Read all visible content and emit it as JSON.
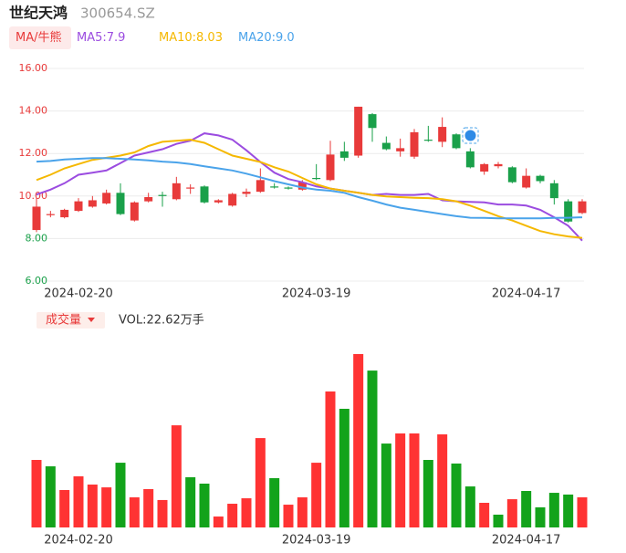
{
  "header": {
    "name": "世纪天鸿",
    "code": "300654.SZ"
  },
  "chart_data": [
    {
      "type": "candlestick",
      "legend_title": "MA/牛熊",
      "categories": [
        null,
        null,
        null,
        "2024-02-20",
        null,
        null,
        null,
        null,
        null,
        null,
        null,
        null,
        null,
        null,
        null,
        null,
        null,
        null,
        null,
        null,
        "2024-03-19",
        null,
        null,
        null,
        null,
        null,
        null,
        null,
        null,
        null,
        null,
        null,
        null,
        null,
        null,
        "2024-04-17",
        null,
        null,
        null,
        null
      ],
      "open": [
        8.4,
        9.1,
        9.0,
        9.3,
        9.5,
        9.65,
        10.15,
        8.85,
        9.75,
        10.05,
        9.85,
        10.35,
        10.45,
        9.7,
        9.55,
        10.1,
        10.2,
        10.45,
        10.4,
        10.3,
        10.85,
        10.75,
        12.1,
        11.9,
        13.85,
        12.5,
        12.1,
        11.85,
        12.65,
        12.55,
        12.9,
        12.1,
        11.15,
        11.4,
        11.35,
        10.4,
        10.95,
        10.6,
        9.75,
        9.2
      ],
      "high": [
        9.9,
        9.3,
        9.4,
        9.9,
        10.0,
        10.3,
        10.6,
        9.75,
        10.15,
        10.2,
        10.9,
        10.55,
        10.5,
        9.85,
        10.15,
        10.35,
        11.3,
        10.6,
        10.45,
        10.75,
        11.5,
        12.6,
        12.55,
        14.2,
        13.9,
        12.8,
        12.7,
        13.15,
        13.3,
        13.7,
        12.95,
        12.25,
        11.55,
        11.6,
        11.4,
        11.3,
        11.0,
        10.75,
        9.85,
        9.85
      ],
      "low": [
        8.3,
        9.0,
        8.95,
        9.25,
        9.45,
        9.6,
        9.1,
        8.8,
        9.7,
        9.5,
        9.8,
        10.1,
        9.65,
        9.65,
        9.5,
        9.95,
        10.15,
        10.35,
        10.3,
        10.25,
        10.75,
        10.7,
        11.65,
        11.8,
        12.55,
        12.15,
        11.85,
        11.75,
        12.55,
        12.3,
        12.2,
        11.3,
        11.0,
        11.3,
        10.6,
        10.35,
        10.6,
        9.6,
        8.75,
        9.15
      ],
      "close": [
        9.5,
        9.15,
        9.35,
        9.75,
        9.8,
        10.15,
        9.15,
        9.7,
        9.95,
        10.0,
        10.6,
        10.4,
        9.7,
        9.8,
        10.1,
        10.2,
        10.75,
        10.4,
        10.35,
        10.65,
        10.8,
        11.95,
        11.8,
        14.2,
        13.2,
        12.2,
        12.25,
        13.0,
        12.6,
        13.25,
        12.25,
        11.35,
        11.5,
        11.5,
        10.65,
        10.95,
        10.7,
        9.9,
        8.8,
        9.75
      ],
      "up_color": "#e83a3a",
      "down_color": "#1aa04a",
      "series": [
        {
          "name": "MA5:7.9",
          "color": "#9b4ce0",
          "values": [
            10.07,
            10.3,
            10.6,
            11.0,
            11.1,
            11.2,
            11.55,
            11.9,
            12.05,
            12.2,
            12.45,
            12.6,
            12.95,
            12.85,
            12.65,
            12.15,
            11.6,
            11.1,
            10.8,
            10.65,
            10.45,
            10.35,
            10.25,
            10.15,
            10.05,
            10.1,
            10.05,
            10.05,
            10.1,
            9.8,
            9.75,
            9.72,
            9.7,
            9.6,
            9.6,
            9.55,
            9.35,
            9.0,
            8.6,
            7.9
          ]
        },
        {
          "name": "MA10:8.03",
          "color": "#f5b800",
          "values": [
            10.75,
            11.0,
            11.3,
            11.5,
            11.7,
            11.8,
            11.9,
            12.05,
            12.35,
            12.55,
            12.6,
            12.65,
            12.5,
            12.2,
            11.9,
            11.75,
            11.6,
            11.35,
            11.15,
            10.85,
            10.55,
            10.35,
            10.25,
            10.15,
            10.05,
            9.98,
            9.95,
            9.92,
            9.9,
            9.85,
            9.75,
            9.55,
            9.3,
            9.05,
            8.85,
            8.6,
            8.35,
            8.2,
            8.1,
            8.03
          ]
        },
        {
          "name": "MA20:9.0",
          "color": "#4aa3ea",
          "values": [
            11.62,
            11.65,
            11.72,
            11.75,
            11.78,
            11.78,
            11.75,
            11.72,
            11.68,
            11.62,
            11.58,
            11.5,
            11.4,
            11.3,
            11.2,
            11.05,
            10.88,
            10.7,
            10.55,
            10.4,
            10.3,
            10.25,
            10.15,
            9.95,
            9.78,
            9.6,
            9.45,
            9.35,
            9.25,
            9.15,
            9.05,
            8.98,
            8.97,
            8.95,
            8.95,
            8.95,
            8.95,
            8.97,
            8.98,
            9.0
          ]
        }
      ],
      "ylim": [
        6,
        16
      ],
      "yticks": [
        {
          "value": 6,
          "label": "6.00"
        },
        {
          "value": 8,
          "label": "8.00"
        },
        {
          "value": 10,
          "label": "10.00"
        },
        {
          "value": 12,
          "label": "12.00"
        },
        {
          "value": 14,
          "label": "14.00"
        },
        {
          "value": 16,
          "label": "16.00"
        }
      ],
      "ytick_colors": [
        "#1aa04a",
        "#1aa04a",
        "#e83a3a",
        "#e83a3a",
        "#e83a3a",
        "#e83a3a"
      ],
      "grid": true
    },
    {
      "type": "bar",
      "title": "成交量",
      "subtitle": "VOL:22.62万手",
      "categories": [
        null,
        null,
        null,
        "2024-02-20",
        null,
        null,
        null,
        null,
        null,
        null,
        null,
        null,
        null,
        null,
        null,
        null,
        null,
        null,
        null,
        null,
        "2024-03-19",
        null,
        null,
        null,
        null,
        null,
        null,
        null,
        null,
        null,
        null,
        null,
        null,
        null,
        null,
        "2024-04-17",
        null,
        null,
        null,
        null
      ],
      "values": [
        50.7,
        45.9,
        28.1,
        38.4,
        32.2,
        30.1,
        48.6,
        22.6,
        28.8,
        20.6,
        76.7,
        37.7,
        32.9,
        8.2,
        17.8,
        21.9,
        67.1,
        37.0,
        17.1,
        22.6,
        48.6,
        102.1,
        89.1,
        130.2,
        117.8,
        63.0,
        70.6,
        70.6,
        50.7,
        69.9,
        48.0,
        30.8,
        18.5,
        9.6,
        21.2,
        27.4,
        15.1,
        26.0,
        24.7,
        22.62
      ],
      "colors": [
        "#ff3333",
        "#13a31b",
        "#ff3333",
        "#ff3333",
        "#ff3333",
        "#ff3333",
        "#13a31b",
        "#ff3333",
        "#ff3333",
        "#ff3333",
        "#ff3333",
        "#13a31b",
        "#13a31b",
        "#ff3333",
        "#ff3333",
        "#ff3333",
        "#ff3333",
        "#13a31b",
        "#ff3333",
        "#ff3333",
        "#ff3333",
        "#ff3333",
        "#13a31b",
        "#ff3333",
        "#13a31b",
        "#13a31b",
        "#ff3333",
        "#ff3333",
        "#13a31b",
        "#ff3333",
        "#13a31b",
        "#13a31b",
        "#ff3333",
        "#13a31b",
        "#ff3333",
        "#13a31b",
        "#13a31b",
        "#13a31b",
        "#13a31b",
        "#ff3333"
      ]
    }
  ]
}
